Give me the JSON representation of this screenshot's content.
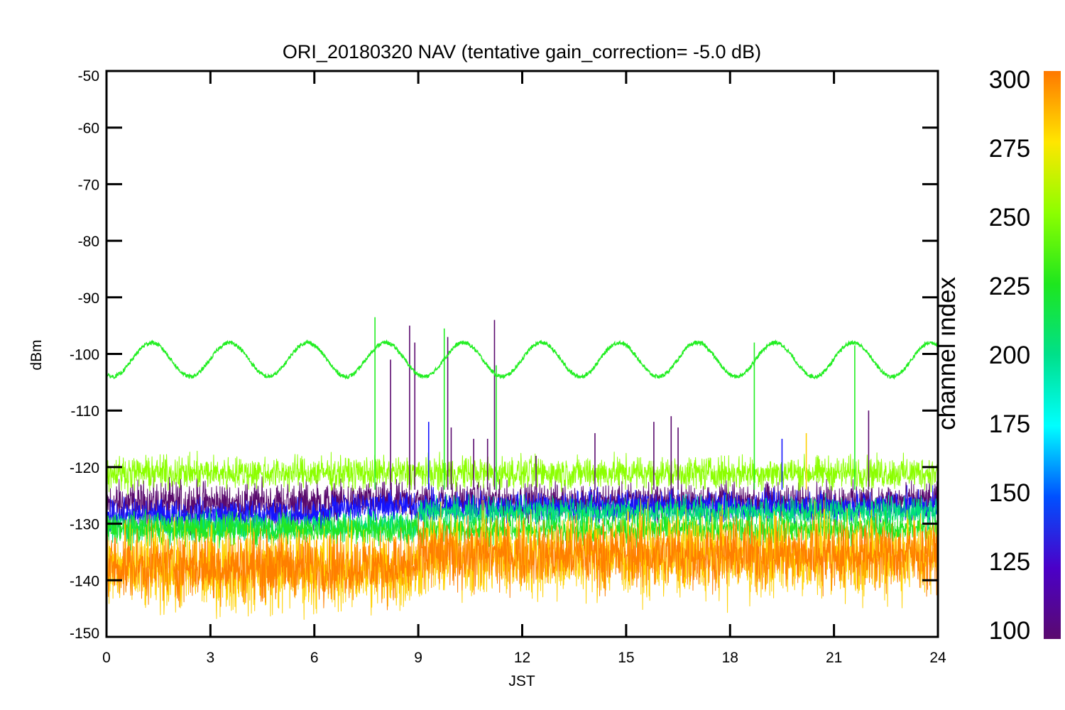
{
  "chart_data": {
    "type": "line",
    "title": "ORI_20180320 NAV (tentative gain_correction= -5.0 dB)",
    "xlabel": "JST",
    "ylabel": "dBm",
    "xlim": [
      0,
      24
    ],
    "ylim": [
      -150,
      -50
    ],
    "x_ticks": [
      0,
      3,
      6,
      9,
      12,
      15,
      18,
      21,
      24
    ],
    "x_tick_labels": [
      "0",
      "3",
      "6",
      "9",
      "12",
      "15",
      "18",
      "21",
      "24"
    ],
    "y_ticks": [
      -150,
      -140,
      -130,
      -120,
      -110,
      -100,
      -90,
      -80,
      -70,
      -60,
      -50
    ],
    "y_tick_labels": [
      "-150",
      "-140",
      "-130",
      "-120",
      "-110",
      "-100",
      "-90",
      "-80",
      "-70",
      "-60",
      "-50"
    ],
    "grid": false,
    "colorbar": {
      "label": "channel index",
      "range": [
        100,
        300
      ],
      "ticks": [
        100,
        125,
        150,
        175,
        200,
        225,
        250,
        275,
        300
      ],
      "tick_labels": [
        "100",
        "125",
        "150",
        "175",
        "200",
        "225",
        "250",
        "275",
        "300"
      ],
      "stops": [
        {
          "value": 100,
          "color": "#5a0a6e"
        },
        {
          "value": 125,
          "color": "#4b00c8"
        },
        {
          "value": 150,
          "color": "#0050ff"
        },
        {
          "value": 175,
          "color": "#00ffff"
        },
        {
          "value": 200,
          "color": "#00e08a"
        },
        {
          "value": 225,
          "color": "#1ee61e"
        },
        {
          "value": 250,
          "color": "#8cff00"
        },
        {
          "value": 275,
          "color": "#ffe600"
        },
        {
          "value": 300,
          "color": "#ff7800"
        }
      ]
    },
    "series": [
      {
        "channel": 110,
        "color": "#5a0a6e",
        "segments": [
          {
            "x": [
              0,
              6.5
            ],
            "center": -126.5,
            "spread": 4.5
          },
          {
            "x": [
              6.5,
              24
            ],
            "center": -126,
            "spread": 3.5
          }
        ]
      },
      {
        "channel": 135,
        "color": "#1414ff",
        "segments": [
          {
            "x": [
              0,
              6.5
            ],
            "center": -128.5,
            "spread": 3
          },
          {
            "x": [
              6.5,
              24
            ],
            "center": -127,
            "spread": 3
          }
        ]
      },
      {
        "channel": 205,
        "color": "#00e07a",
        "segments": [
          {
            "x": [
              0,
              9
            ],
            "center": -130.5,
            "spread": 3
          },
          {
            "x": [
              9,
              24
            ],
            "center": -128,
            "spread": 3
          }
        ]
      },
      {
        "channel": 235,
        "color": "#22e622",
        "segments": [
          {
            "x": [
              0,
              24
            ],
            "center": -131,
            "spread": 3
          }
        ]
      },
      {
        "channel": 255,
        "color": "#8cff00",
        "segments": [
          {
            "x": [
              0,
              24
            ],
            "center": -121,
            "spread": 3.2
          }
        ]
      },
      {
        "channel": 280,
        "color": "#ffd000",
        "segments": [
          {
            "x": [
              0,
              9
            ],
            "center": -138,
            "spread": 8.5
          },
          {
            "x": [
              9,
              24
            ],
            "center": -135.5,
            "spread": 8.5
          }
        ]
      },
      {
        "channel": 300,
        "color": "#ff7f00",
        "segments": [
          {
            "x": [
              0,
              9
            ],
            "center": -137.5,
            "spread": 6.5
          },
          {
            "x": [
              9,
              24
            ],
            "center": -135.5,
            "spread": 6.5
          }
        ]
      }
    ],
    "reference_wave": {
      "channel": 230,
      "color": "#22ee22",
      "center": -101,
      "amplitude": 3,
      "period_hours": 2.25,
      "peak_at_hours": 1.3
    },
    "spikes": [
      {
        "x": 7.75,
        "y": -93.5,
        "color": "#22ee22"
      },
      {
        "x": 8.2,
        "y": -101,
        "color": "#5a0a6e"
      },
      {
        "x": 8.75,
        "y": -95,
        "color": "#5a0a6e"
      },
      {
        "x": 8.9,
        "y": -98,
        "color": "#5a0a6e"
      },
      {
        "x": 9.3,
        "y": -112,
        "color": "#1414ff"
      },
      {
        "x": 9.75,
        "y": -95.5,
        "color": "#22ee22"
      },
      {
        "x": 9.85,
        "y": -97,
        "color": "#5a0a6e"
      },
      {
        "x": 11.2,
        "y": -94,
        "color": "#5a0a6e"
      },
      {
        "x": 11.25,
        "y": -102,
        "color": "#22ee22"
      },
      {
        "x": 11.0,
        "y": -115,
        "color": "#5a0a6e"
      },
      {
        "x": 9.95,
        "y": -113,
        "color": "#5a0a6e"
      },
      {
        "x": 12.4,
        "y": -118,
        "color": "#5a0a6e"
      },
      {
        "x": 15.8,
        "y": -112,
        "color": "#5a0a6e"
      },
      {
        "x": 16.3,
        "y": -111,
        "color": "#5a0a6e"
      },
      {
        "x": 16.5,
        "y": -113,
        "color": "#5a0a6e"
      },
      {
        "x": 18.7,
        "y": -98,
        "color": "#22ee22"
      },
      {
        "x": 20.2,
        "y": -114,
        "color": "#ffd000"
      },
      {
        "x": 21.6,
        "y": -98.5,
        "color": "#22ee22"
      },
      {
        "x": 22.0,
        "y": -110,
        "color": "#5a0a6e"
      },
      {
        "x": 10.6,
        "y": -115,
        "color": "#5a0a6e"
      },
      {
        "x": 14.1,
        "y": -114,
        "color": "#5a0a6e"
      },
      {
        "x": 19.5,
        "y": -115,
        "color": "#1414ff"
      }
    ]
  }
}
